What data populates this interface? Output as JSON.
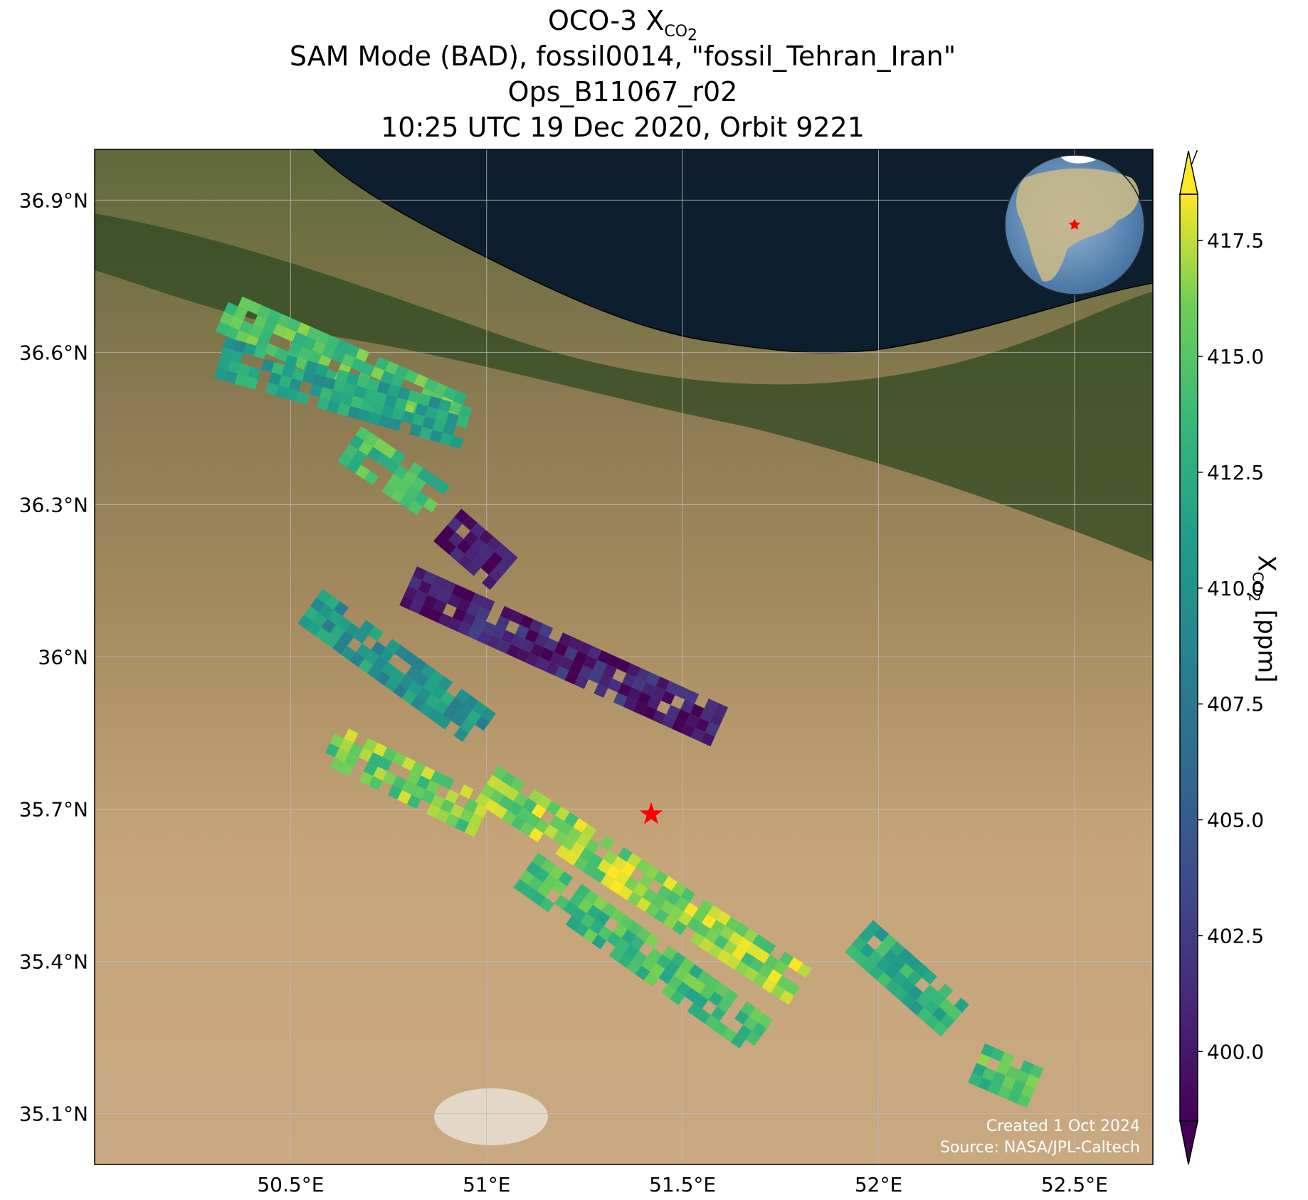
{
  "title": {
    "line1_prefix": "OCO-3 X",
    "line1_sub": "CO",
    "line1_subsub": "2",
    "line2": "SAM Mode (BAD), fossil0014, \"fossil_Tehran_Iran\"",
    "line3": "Ops_B11067_r02",
    "line4": "10:25 UTC 19 Dec 2020, Orbit 9221"
  },
  "map": {
    "lon_ticks": [
      "50.5°E",
      "51°E",
      "51.5°E",
      "52°E",
      "52.5°E"
    ],
    "lat_ticks": [
      "36.9°N",
      "36.6°N",
      "36.3°N",
      "36°N",
      "35.7°N",
      "35.4°N",
      "35.1°N"
    ],
    "lon_range": [
      50.0,
      52.7
    ],
    "lat_range": [
      35.0,
      37.0
    ],
    "target_marker": {
      "lon": 51.42,
      "lat": 35.69,
      "color": "#ff0000"
    },
    "credits": [
      "Created 1 Oct 2024",
      "Source: NASA/JPL-Caltech"
    ]
  },
  "colorbar": {
    "label_prefix": "X",
    "label_sub": "CO",
    "label_subsub": "2",
    "label_suffix": " [ppm]",
    "ticks": [
      "400.0",
      "402.5",
      "405.0",
      "407.5",
      "410.0",
      "412.5",
      "415.0",
      "417.5"
    ],
    "range": [
      398.5,
      418.5
    ],
    "colormap": "viridis"
  },
  "chart_data": {
    "type": "heatmap",
    "variable": "XCO2",
    "units": "ppm",
    "swaths": [
      {
        "from": [
          50.33,
          36.68
        ],
        "to": [
          50.92,
          36.48
        ],
        "mean": 414.5
      },
      {
        "from": [
          50.32,
          36.59
        ],
        "to": [
          50.95,
          36.45
        ],
        "mean": 411.5
      },
      {
        "from": [
          50.65,
          36.42
        ],
        "to": [
          50.88,
          36.3
        ],
        "mean": 414.0
      },
      {
        "from": [
          50.9,
          36.26
        ],
        "to": [
          51.05,
          36.16
        ],
        "mean": 399.6
      },
      {
        "from": [
          50.8,
          36.14
        ],
        "to": [
          51.6,
          35.86
        ],
        "mean": 400.5
      },
      {
        "from": [
          50.55,
          36.1
        ],
        "to": [
          51.0,
          35.85
        ],
        "mean": 410.5
      },
      {
        "from": [
          50.6,
          35.83
        ],
        "to": [
          51.0,
          35.68
        ],
        "mean": 415.5
      },
      {
        "from": [
          51.0,
          35.75
        ],
        "to": [
          51.8,
          35.35
        ],
        "mean": 416.3
      },
      {
        "from": [
          51.1,
          35.58
        ],
        "to": [
          51.7,
          35.25
        ],
        "mean": 414.0
      },
      {
        "from": [
          51.95,
          35.45
        ],
        "to": [
          52.2,
          35.28
        ],
        "mean": 412.5
      },
      {
        "from": [
          52.25,
          35.2
        ],
        "to": [
          52.4,
          35.15
        ],
        "mean": 414.5
      }
    ]
  }
}
